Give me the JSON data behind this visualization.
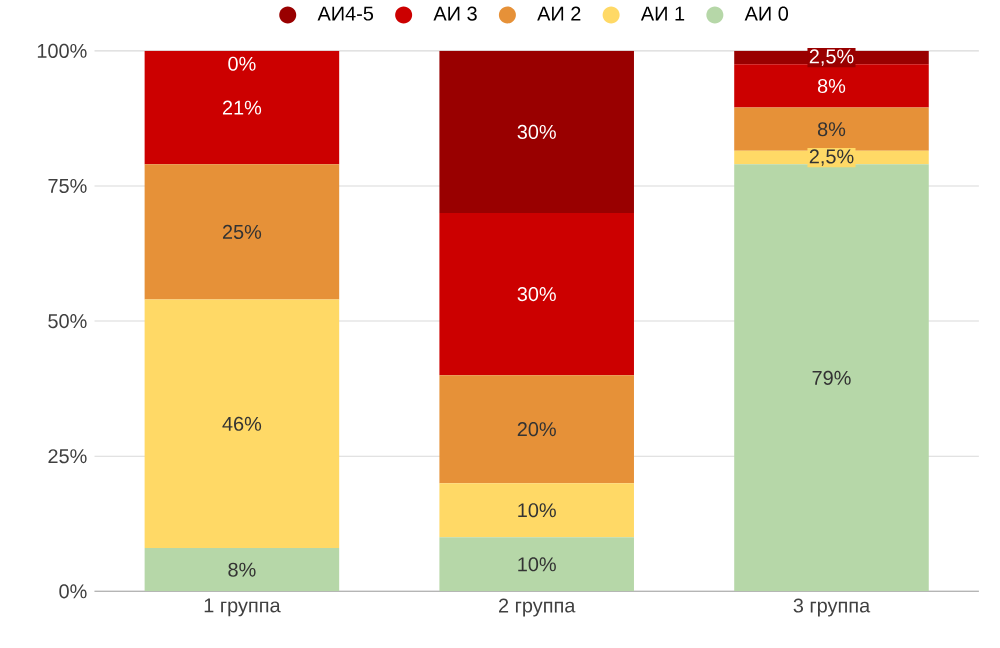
{
  "chart_data": {
    "type": "bar",
    "stacked": true,
    "categories": [
      "1 группа",
      "2 группа",
      "3 группа"
    ],
    "series": [
      {
        "name": "АИ 0",
        "color": "#b6d7a8",
        "values": [
          8,
          10,
          79
        ],
        "value_labels": [
          "8%",
          "10%",
          "79%"
        ]
      },
      {
        "name": "АИ 1",
        "color": "#ffd966",
        "values": [
          46,
          10,
          2.5
        ],
        "value_labels": [
          "46%",
          "10%",
          "2,5%"
        ]
      },
      {
        "name": "АИ 2",
        "color": "#e69138",
        "values": [
          25,
          20,
          8
        ],
        "value_labels": [
          "25%",
          "20%",
          "8%"
        ]
      },
      {
        "name": "АИ 3",
        "color": "#cc0000",
        "values": [
          21,
          30,
          8
        ],
        "value_labels": [
          "21%",
          "30%",
          "8%"
        ]
      },
      {
        "name": "АИ4-5",
        "color": "#990000",
        "values": [
          0,
          30,
          2.5
        ],
        "value_labels": [
          "0%",
          "30%",
          "2,5%"
        ]
      }
    ],
    "ylim": [
      0,
      100
    ],
    "yticks": [
      {
        "value": 0,
        "label": "0%"
      },
      {
        "value": 25,
        "label": "25%"
      },
      {
        "value": 50,
        "label": "50%"
      },
      {
        "value": 75,
        "label": "75%"
      },
      {
        "value": 100,
        "label": "100%"
      }
    ],
    "grid": "y",
    "legend": "top"
  }
}
